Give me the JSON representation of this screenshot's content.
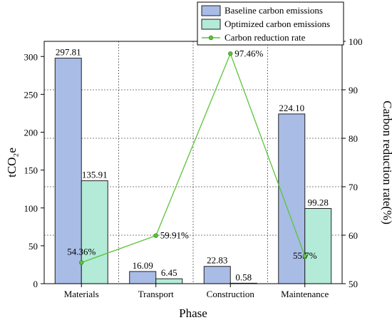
{
  "chart_data": {
    "type": "bar",
    "xlabel": "Phase",
    "ylabel": "tCO₂e",
    "y2label": "Carbon reduction rate(%)",
    "categories": [
      "Materials",
      "Transport",
      "Construction",
      "Maintenance"
    ],
    "ylim": [
      0,
      320
    ],
    "yticks": [
      "0",
      "50",
      "100",
      "150",
      "200",
      "250",
      "300"
    ],
    "y2lim": [
      50,
      100
    ],
    "y2ticks": [
      "50",
      "60",
      "70",
      "80",
      "90",
      "100"
    ],
    "grid": "dotted at y2 ticks and between categories",
    "legend_position": "top-right",
    "series": [
      {
        "name": "Baseline carbon emissions",
        "kind": "bar",
        "axis": "left",
        "color": "#a8bce6",
        "values": [
          297.81,
          16.09,
          22.83,
          224.1
        ],
        "labels": [
          "297.81",
          "16.09",
          "22.83",
          "224.10"
        ]
      },
      {
        "name": "Optimized carbon emissions",
        "kind": "bar",
        "axis": "left",
        "color": "#b3ead8",
        "values": [
          135.91,
          6.45,
          0.58,
          99.28
        ],
        "labels": [
          "135.91",
          "6.45",
          "0.58",
          "99.28"
        ]
      },
      {
        "name": "Carbon reduction rate",
        "kind": "line",
        "axis": "right",
        "color": "#5cc43a",
        "values": [
          54.36,
          59.91,
          97.46,
          55.7
        ],
        "labels": [
          "54.36%",
          "59.91%",
          "97.46%",
          "55.7%"
        ]
      }
    ]
  }
}
